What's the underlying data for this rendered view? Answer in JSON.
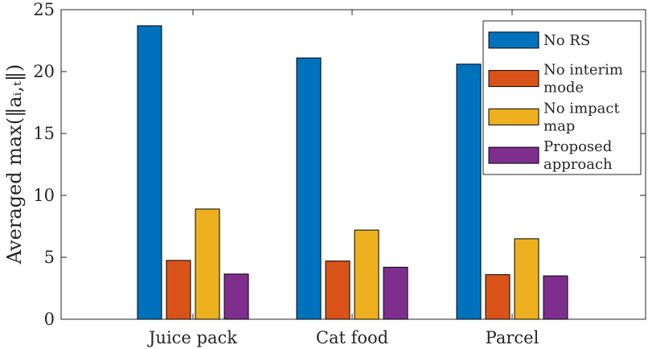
{
  "chart_data": {
    "type": "bar",
    "title": "",
    "xlabel": "",
    "ylabel": "Averaged max(‖aᵢ,ₜ‖)",
    "ylim": [
      0,
      25
    ],
    "yticks": [
      0,
      5,
      10,
      15,
      20,
      25
    ],
    "grid": false,
    "legend_position": "top-right",
    "categories": [
      "Juice pack",
      "Cat food",
      "Parcel"
    ],
    "series": [
      {
        "name": "No RS",
        "legend_lines": [
          "No RS"
        ],
        "color": "#0072BD",
        "values": [
          23.7,
          21.1,
          20.6
        ]
      },
      {
        "name": "No interim mode",
        "legend_lines": [
          "No interim",
          "mode"
        ],
        "color": "#D95319",
        "values": [
          4.75,
          4.7,
          3.6
        ]
      },
      {
        "name": "No impact map",
        "legend_lines": [
          "No impact",
          "map"
        ],
        "color": "#EDB120",
        "values": [
          8.9,
          7.2,
          6.5
        ]
      },
      {
        "name": "Proposed approach",
        "legend_lines": [
          "Proposed",
          "approach"
        ],
        "color": "#7E2F8E",
        "values": [
          3.65,
          4.2,
          3.5
        ]
      }
    ]
  }
}
